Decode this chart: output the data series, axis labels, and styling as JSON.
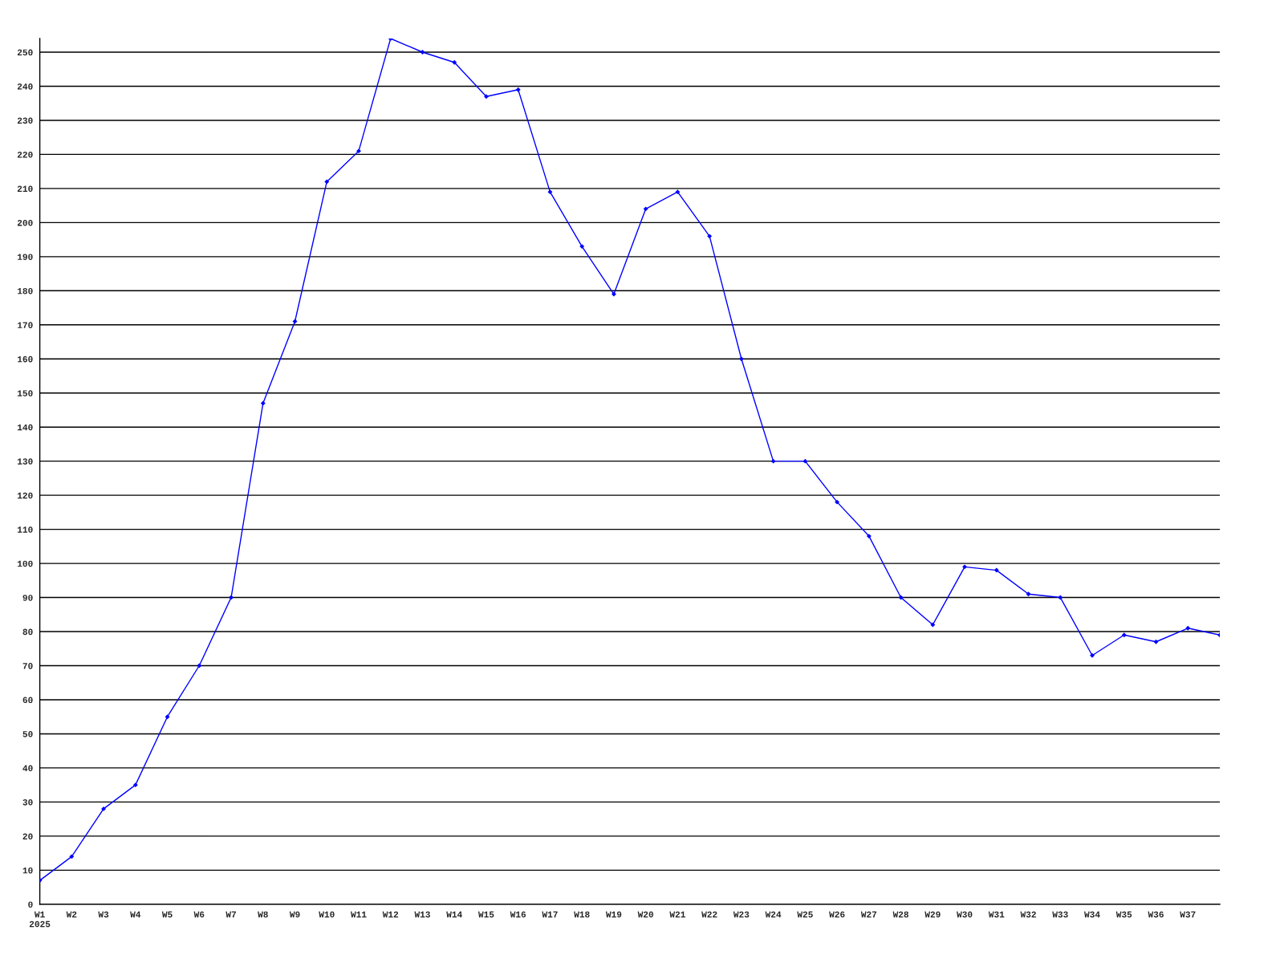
{
  "chart_data": {
    "type": "line",
    "categories": [
      "W1\n2025",
      "W2",
      "W3",
      "W4",
      "W5",
      "W6",
      "W7",
      "W8",
      "W9",
      "W10",
      "W11",
      "W12",
      "W13",
      "W14",
      "W15",
      "W16",
      "W17",
      "W18",
      "W19",
      "W20",
      "W21",
      "W22",
      "W23",
      "W24",
      "W25",
      "W26",
      "W27",
      "W28",
      "W29",
      "W30",
      "W31",
      "W32",
      "W33",
      "W34",
      "W35",
      "W36",
      "W37",
      null
    ],
    "series": [
      {
        "color": "#0000ff",
        "values": [
          7,
          14,
          28,
          35,
          55,
          70,
          90,
          147,
          171,
          212,
          221,
          254,
          250,
          247,
          237,
          239,
          209,
          193,
          179,
          204,
          209,
          196,
          160,
          130,
          130,
          118,
          108,
          90,
          82,
          99,
          98,
          91,
          90,
          73,
          79,
          77,
          81,
          79
        ]
      }
    ],
    "ylim": [
      0,
      254
    ],
    "yticks": [
      0,
      10,
      20,
      30,
      40,
      50,
      60,
      70,
      80,
      90,
      100,
      110,
      120,
      130,
      140,
      150,
      160,
      170,
      180,
      190,
      200,
      210,
      220,
      230,
      240,
      250
    ],
    "grid": "y",
    "marker": "diamond",
    "line_style": "solid"
  }
}
